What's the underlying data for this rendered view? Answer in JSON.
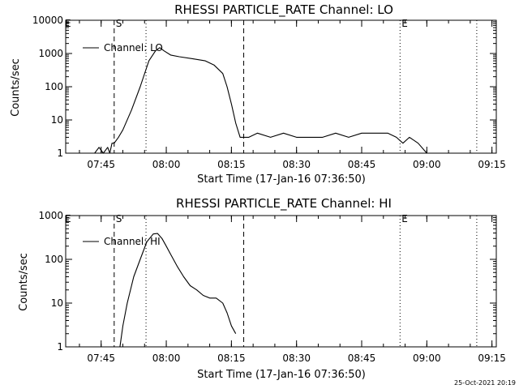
{
  "footer": {
    "timestamp": "25-Oct-2021 20:19"
  },
  "chart_data": [
    {
      "type": "line",
      "title": "RHESSI PARTICLE_RATE Channel: LO",
      "xlabel": "Start Time (17-Jan-16 07:36:50)",
      "ylabel": "Counts/sec",
      "yscale": "log",
      "xlim": [
        "07:36:50",
        "09:16:00"
      ],
      "ylim": [
        1,
        10000
      ],
      "x_tick_labels": [
        "07:45",
        "08:00",
        "08:15",
        "08:30",
        "08:45",
        "09:00",
        "09:15"
      ],
      "y_tick_labels": [
        "1",
        "10",
        "100",
        "1000",
        "10000"
      ],
      "legend": {
        "location": "top-left",
        "entries": [
          "Channel: LO"
        ]
      },
      "vlines": [
        {
          "x": "07:48:00",
          "style": "dashed",
          "label": "S"
        },
        {
          "x": "07:55:20",
          "style": "dotted",
          "label": ""
        },
        {
          "x": "08:17:50",
          "style": "dashed",
          "label": ""
        },
        {
          "x": "08:53:50",
          "style": "dotted",
          "label": "E"
        },
        {
          "x": "09:11:30",
          "style": "dotted",
          "label": ""
        }
      ],
      "edge_markers": [
        "E"
      ],
      "series": [
        {
          "name": "Channel: LO",
          "x": [
            "07:37:50",
            "07:40:00",
            "07:42:00",
            "07:43:30",
            "07:44:30",
            "07:45:30",
            "07:46:30",
            "07:47:00",
            "07:47:30",
            "07:48:00",
            "07:49:00",
            "07:50:00",
            "07:52:00",
            "07:54:00",
            "07:56:00",
            "07:57:30",
            "07:58:30",
            "07:59:30",
            "08:01:00",
            "08:03:00",
            "08:06:00",
            "08:09:00",
            "08:11:00",
            "08:13:00",
            "08:14:00",
            "08:15:00",
            "08:16:00",
            "08:17:00",
            "08:17:50",
            "08:19:00",
            "08:21:00",
            "08:24:00",
            "08:27:00",
            "08:30:00",
            "08:33:00",
            "08:36:00",
            "08:39:00",
            "08:42:00",
            "08:45:00",
            "08:48:00",
            "08:51:00",
            "08:53:00",
            "08:54:30",
            "08:56:00",
            "08:58:00",
            "09:00:00",
            "09:03:00",
            "09:06:00",
            "09:09:00",
            "09:11:00"
          ],
          "y": [
            1,
            1,
            1,
            1,
            1.5,
            1,
            1.5,
            1,
            2,
            2,
            3,
            5,
            20,
            100,
            600,
            1200,
            1500,
            1200,
            900,
            800,
            700,
            600,
            450,
            250,
            100,
            30,
            8,
            3,
            3,
            3,
            4,
            3,
            4,
            3,
            3,
            3,
            4,
            3,
            4,
            4,
            4,
            3,
            2,
            3,
            2,
            1,
            1,
            1,
            1,
            1
          ]
        }
      ]
    },
    {
      "type": "line",
      "title": "RHESSI PARTICLE_RATE Channel: HI",
      "xlabel": "Start Time (17-Jan-16 07:36:50)",
      "ylabel": "Counts/sec",
      "yscale": "log",
      "xlim": [
        "07:36:50",
        "09:16:00"
      ],
      "ylim": [
        1,
        1000
      ],
      "x_tick_labels": [
        "07:45",
        "08:00",
        "08:15",
        "08:30",
        "08:45",
        "09:00",
        "09:15"
      ],
      "y_tick_labels": [
        "1",
        "10",
        "100",
        "1000"
      ],
      "legend": {
        "location": "top-left",
        "entries": [
          "Channel: HI"
        ]
      },
      "vlines": [
        {
          "x": "07:48:00",
          "style": "dashed",
          "label": "S"
        },
        {
          "x": "07:55:20",
          "style": "dotted",
          "label": ""
        },
        {
          "x": "08:17:50",
          "style": "dashed",
          "label": ""
        },
        {
          "x": "08:53:50",
          "style": "dotted",
          "label": "E"
        },
        {
          "x": "09:11:30",
          "style": "dotted",
          "label": ""
        }
      ],
      "edge_markers": [
        "E"
      ],
      "series": [
        {
          "name": "Channel: HI",
          "x": [
            "07:49:20",
            "07:50:00",
            "07:51:00",
            "07:52:30",
            "07:54:00",
            "07:55:30",
            "07:57:00",
            "07:58:00",
            "07:59:00",
            "08:00:00",
            "08:01:00",
            "08:02:30",
            "08:04:00",
            "08:05:30",
            "08:07:00",
            "08:08:30",
            "08:10:00",
            "08:11:30",
            "08:13:00",
            "08:14:00",
            "08:15:00",
            "08:16:00"
          ],
          "y": [
            1,
            3,
            10,
            40,
            100,
            250,
            380,
            390,
            300,
            200,
            130,
            70,
            40,
            25,
            20,
            15,
            13,
            13,
            10,
            6,
            3,
            2
          ]
        }
      ]
    }
  ]
}
